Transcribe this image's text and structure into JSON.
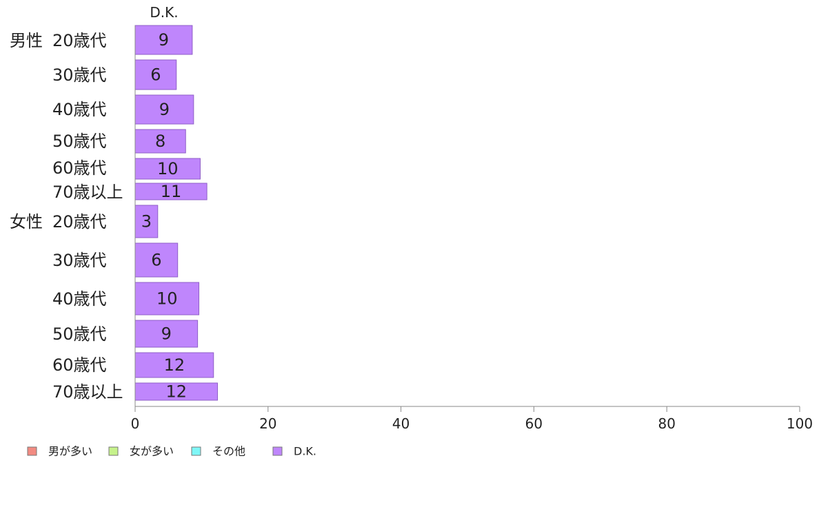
{
  "chart_data": {
    "type": "bar",
    "orientation": "horizontal",
    "stacked": true,
    "column_header": "D.K.",
    "groups": [
      {
        "name": "男性",
        "first_row": 0
      },
      {
        "name": "女性",
        "first_row": 6
      }
    ],
    "categories": [
      "20歳代",
      "30歳代",
      "40歳代",
      "50歳代",
      "60歳代",
      "70歳以上",
      "20歳代",
      "30歳代",
      "40歳代",
      "50歳代",
      "60歳代",
      "70歳以上"
    ],
    "series": [
      {
        "name": "男が多い",
        "color": "#f28b82",
        "values": [
          0,
          0,
          0,
          0,
          0,
          0,
          0,
          0,
          0,
          0,
          0,
          0
        ]
      },
      {
        "name": "女が多い",
        "color": "#c6f28b",
        "values": [
          0,
          0,
          0,
          0,
          0,
          0,
          0,
          0,
          0,
          0,
          0,
          0
        ]
      },
      {
        "name": "その他",
        "color": "#7ff7f7",
        "values": [
          0,
          0,
          0,
          0,
          0,
          0,
          0,
          0,
          0,
          0,
          0,
          0
        ]
      },
      {
        "name": "D.K.",
        "color": "#bf86fc",
        "values": [
          8.6,
          6.2,
          8.8,
          7.6,
          9.8,
          10.8,
          3.4,
          6.4,
          9.6,
          9.4,
          11.8,
          12.4
        ]
      }
    ],
    "data_labels": [
      "9",
      "6",
      "9",
      "8",
      "10",
      "11",
      "3",
      "6",
      "10",
      "9",
      "12",
      "12"
    ],
    "xlim": [
      0,
      100
    ],
    "xticks": [
      0,
      20,
      40,
      60,
      80,
      100
    ],
    "grid": false,
    "legend_position": "bottom-left"
  }
}
